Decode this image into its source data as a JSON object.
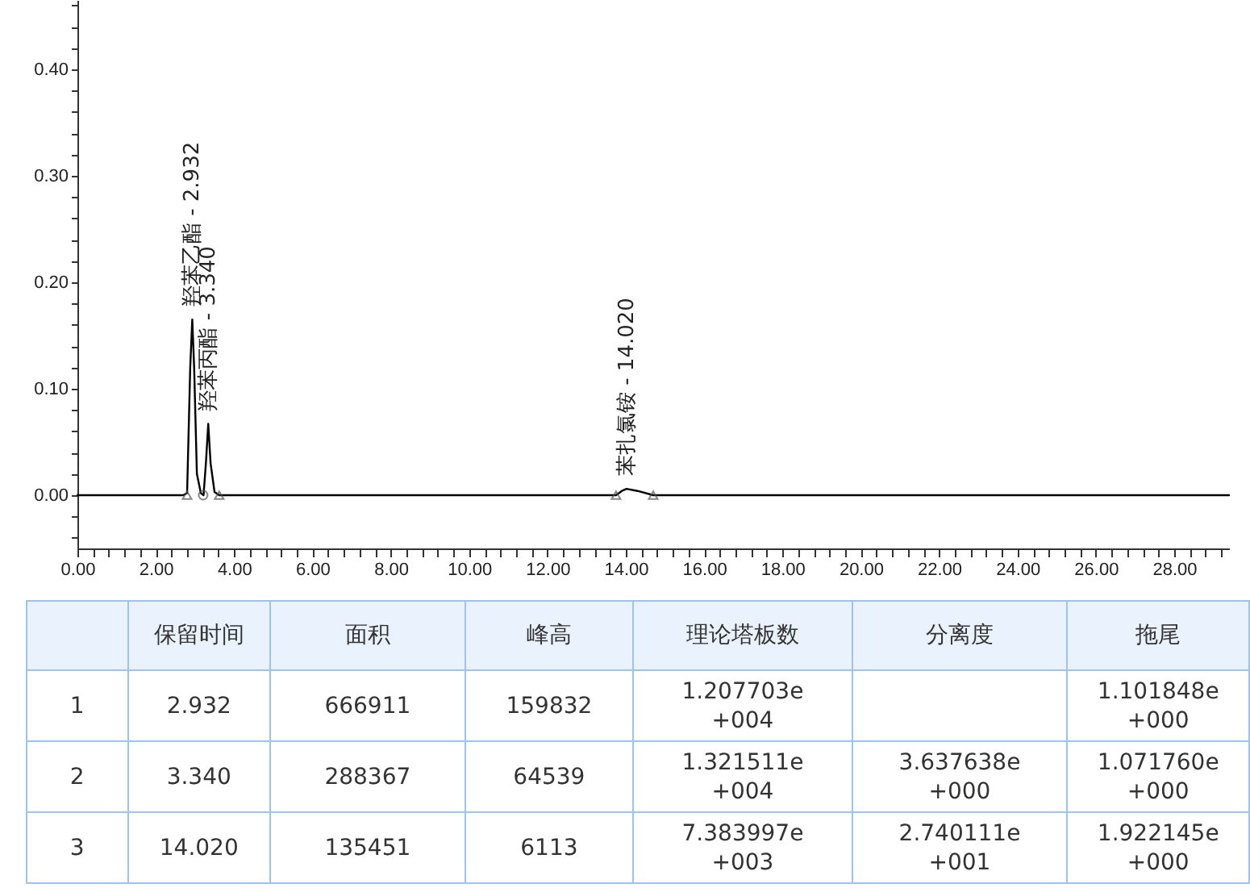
{
  "chart_data": [
    {
      "type": "line",
      "xlim": [
        0,
        29.4
      ],
      "ylim": [
        -0.05,
        0.465
      ],
      "xticks": [
        {
          "value": 0,
          "label": "0.00"
        },
        {
          "value": 0.4,
          "label": null
        },
        {
          "value": 0.8,
          "label": null
        },
        {
          "value": 1.2,
          "label": null
        },
        {
          "value": 1.6,
          "label": null
        },
        {
          "value": 2,
          "label": "2.00"
        },
        {
          "value": 2.4,
          "label": null
        },
        {
          "value": 2.8,
          "label": null
        },
        {
          "value": 3.2,
          "label": null
        },
        {
          "value": 3.6,
          "label": null
        },
        {
          "value": 4,
          "label": "4.00"
        },
        {
          "value": 4.4,
          "label": null
        },
        {
          "value": 4.8,
          "label": null
        },
        {
          "value": 5.2,
          "label": null
        },
        {
          "value": 5.6,
          "label": null
        },
        {
          "value": 6,
          "label": "6.00"
        },
        {
          "value": 6.4,
          "label": null
        },
        {
          "value": 6.8,
          "label": null
        },
        {
          "value": 7.2,
          "label": null
        },
        {
          "value": 7.6,
          "label": null
        },
        {
          "value": 8,
          "label": "8.00"
        },
        {
          "value": 8.4,
          "label": null
        },
        {
          "value": 8.8,
          "label": null
        },
        {
          "value": 9.2,
          "label": null
        },
        {
          "value": 9.6,
          "label": null
        },
        {
          "value": 10,
          "label": "10.00"
        },
        {
          "value": 10.4,
          "label": null
        },
        {
          "value": 10.8,
          "label": null
        },
        {
          "value": 11.2,
          "label": null
        },
        {
          "value": 11.6,
          "label": null
        },
        {
          "value": 12,
          "label": "12.00"
        },
        {
          "value": 12.4,
          "label": null
        },
        {
          "value": 12.8,
          "label": null
        },
        {
          "value": 13.2,
          "label": null
        },
        {
          "value": 13.6,
          "label": null
        },
        {
          "value": 14,
          "label": "14.00"
        },
        {
          "value": 14.4,
          "label": null
        },
        {
          "value": 14.8,
          "label": null
        },
        {
          "value": 15.2,
          "label": null
        },
        {
          "value": 15.6,
          "label": null
        },
        {
          "value": 16,
          "label": "16.00"
        },
        {
          "value": 16.4,
          "label": null
        },
        {
          "value": 16.8,
          "label": null
        },
        {
          "value": 17.2,
          "label": null
        },
        {
          "value": 17.6,
          "label": null
        },
        {
          "value": 18,
          "label": "18.00"
        },
        {
          "value": 18.4,
          "label": null
        },
        {
          "value": 18.8,
          "label": null
        },
        {
          "value": 19.2,
          "label": null
        },
        {
          "value": 19.6,
          "label": null
        },
        {
          "value": 20,
          "label": "20.00"
        },
        {
          "value": 20.4,
          "label": null
        },
        {
          "value": 20.8,
          "label": null
        },
        {
          "value": 21.2,
          "label": null
        },
        {
          "value": 21.6,
          "label": null
        },
        {
          "value": 22,
          "label": "22.00"
        },
        {
          "value": 22.4,
          "label": null
        },
        {
          "value": 22.8,
          "label": null
        },
        {
          "value": 23.2,
          "label": null
        },
        {
          "value": 23.6,
          "label": null
        },
        {
          "value": 24,
          "label": "24.00"
        },
        {
          "value": 24.4,
          "label": null
        },
        {
          "value": 24.8,
          "label": null
        },
        {
          "value": 25.2,
          "label": null
        },
        {
          "value": 25.6,
          "label": null
        },
        {
          "value": 26,
          "label": "26.00"
        },
        {
          "value": 26.4,
          "label": null
        },
        {
          "value": 26.8,
          "label": null
        },
        {
          "value": 27.2,
          "label": null
        },
        {
          "value": 27.6,
          "label": null
        },
        {
          "value": 28,
          "label": "28.00"
        },
        {
          "value": 28.4,
          "label": null
        },
        {
          "value": 28.8,
          "label": null
        },
        {
          "value": 29.2,
          "label": null
        }
      ],
      "yticks": [
        {
          "value": -0.04,
          "label": null
        },
        {
          "value": -0.02,
          "label": null
        },
        {
          "value": 0,
          "label": "0.00"
        },
        {
          "value": 0.02,
          "label": null
        },
        {
          "value": 0.04,
          "label": null
        },
        {
          "value": 0.06,
          "label": null
        },
        {
          "value": 0.08,
          "label": null
        },
        {
          "value": 0.1,
          "label": "0.10"
        },
        {
          "value": 0.12,
          "label": null
        },
        {
          "value": 0.14,
          "label": null
        },
        {
          "value": 0.16,
          "label": null
        },
        {
          "value": 0.18,
          "label": null
        },
        {
          "value": 0.2,
          "label": "0.20"
        },
        {
          "value": 0.22,
          "label": null
        },
        {
          "value": 0.24,
          "label": null
        },
        {
          "value": 0.26,
          "label": null
        },
        {
          "value": 0.28,
          "label": null
        },
        {
          "value": 0.3,
          "label": "0.30"
        },
        {
          "value": 0.32,
          "label": null
        },
        {
          "value": 0.34,
          "label": null
        },
        {
          "value": 0.36,
          "label": null
        },
        {
          "value": 0.38,
          "label": null
        },
        {
          "value": 0.4,
          "label": "0.40"
        },
        {
          "value": 0.42,
          "label": null
        },
        {
          "value": 0.44,
          "label": null
        },
        {
          "value": 0.46,
          "label": null
        }
      ],
      "grid": false,
      "series": [
        {
          "type": "line",
          "color": "#000000",
          "marker": "none",
          "x": [
            0,
            2.7,
            2.8,
            2.88,
            2.932,
            2.98,
            3.05,
            3.15,
            3.22,
            3.28,
            3.34,
            3.4,
            3.5,
            3.62,
            13.75,
            13.9,
            14.02,
            14.3,
            14.7,
            29.4
          ],
          "values": [
            0,
            0,
            0.002,
            0.12,
            0.165,
            0.12,
            0.02,
            0.002,
            0,
            0.03,
            0.067,
            0.03,
            0.003,
            0,
            0,
            0.004,
            0.006,
            0.004,
            0,
            0
          ]
        },
        {
          "type": "scatter",
          "color": "#555555",
          "marker": "triangle",
          "x": [
            2.8,
            3.62,
            13.75,
            14.7
          ],
          "values": [
            0,
            0,
            0,
            0
          ]
        },
        {
          "type": "scatter",
          "color": "#555555",
          "marker": "circle",
          "x": [
            3.21
          ],
          "values": [
            0
          ]
        }
      ],
      "annotations": [
        {
          "text": "羟苯乙酯 - 2.932",
          "x": 2.932,
          "y": 0.165
        },
        {
          "text": "羟苯丙酯 - 3.340",
          "x": 3.34,
          "y": 0.067
        },
        {
          "text": "苯扎氯铵 - 14.020",
          "x": 14.02,
          "y": 0.006
        }
      ]
    },
    {
      "type": "other",
      "categories": [
        null,
        "保留时间",
        "面积",
        "峰高",
        "理论塔板数",
        "分离度",
        "拖尾"
      ],
      "cell_labels": [
        [
          "1",
          "2.932",
          "666911",
          "159832",
          "1.207703e\n+004",
          null,
          "1.101848e\n+000"
        ],
        [
          "2",
          "3.340",
          "288367",
          "64539",
          "1.321511e\n+004",
          "3.637638e\n+000",
          "1.071760e\n+000"
        ],
        [
          "3",
          "14.020",
          "135451",
          "6113",
          "7.383997e\n+003",
          "2.740111e\n+001",
          "1.922145e\n+000"
        ]
      ]
    }
  ]
}
